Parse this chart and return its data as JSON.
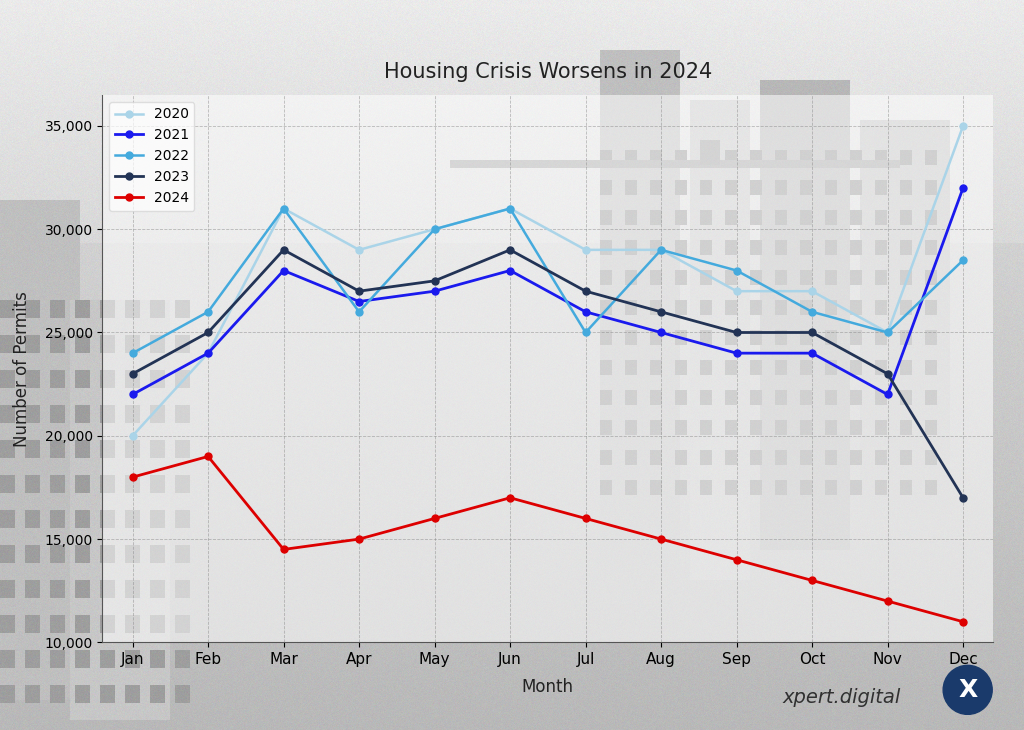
{
  "title": "Housing Crisis Worsens in 2024",
  "xlabel": "Month",
  "ylabel": "Number of Permits",
  "months": [
    "Jan",
    "Feb",
    "Mar",
    "Apr",
    "May",
    "Jun",
    "Jul",
    "Aug",
    "Sep",
    "Oct",
    "Nov",
    "Dec"
  ],
  "series": {
    "2020": {
      "values": [
        20000,
        24000,
        31000,
        29000,
        30000,
        31000,
        29000,
        29000,
        27000,
        27000,
        25000,
        35000
      ],
      "color": "#aad4e8",
      "linewidth": 1.8,
      "marker": "o",
      "markersize": 5,
      "linestyle": "-"
    },
    "2021": {
      "values": [
        22000,
        24000,
        28000,
        26500,
        27000,
        28000,
        26000,
        25000,
        24000,
        24000,
        22000,
        32000
      ],
      "color": "#1a1aee",
      "linewidth": 2.0,
      "marker": "o",
      "markersize": 5,
      "linestyle": "-"
    },
    "2022": {
      "values": [
        24000,
        26000,
        31000,
        26000,
        30000,
        31000,
        25000,
        29000,
        28000,
        26000,
        25000,
        28500
      ],
      "color": "#44aadd",
      "linewidth": 1.8,
      "marker": "o",
      "markersize": 5,
      "linestyle": "-"
    },
    "2023": {
      "values": [
        23000,
        25000,
        29000,
        27000,
        27500,
        29000,
        27000,
        26000,
        25000,
        25000,
        23000,
        17000
      ],
      "color": "#223355",
      "linewidth": 2.0,
      "marker": "o",
      "markersize": 5,
      "linestyle": "-"
    },
    "2024": {
      "values": [
        18000,
        19000,
        14500,
        15000,
        16000,
        17000,
        16000,
        15000,
        14000,
        13000,
        12000,
        11000
      ],
      "color": "#dd0000",
      "linewidth": 2.0,
      "marker": "o",
      "markersize": 5,
      "linestyle": "-"
    }
  },
  "ylim": [
    10000,
    36500
  ],
  "yticks": [
    10000,
    15000,
    20000,
    25000,
    30000,
    35000
  ],
  "legend_order": [
    "2020",
    "2021",
    "2022",
    "2023",
    "2024"
  ],
  "title_fontsize": 15,
  "watermark_text": "xpert.digital",
  "watermark_fontsize": 14,
  "plot_bg_alpha": 0.55
}
